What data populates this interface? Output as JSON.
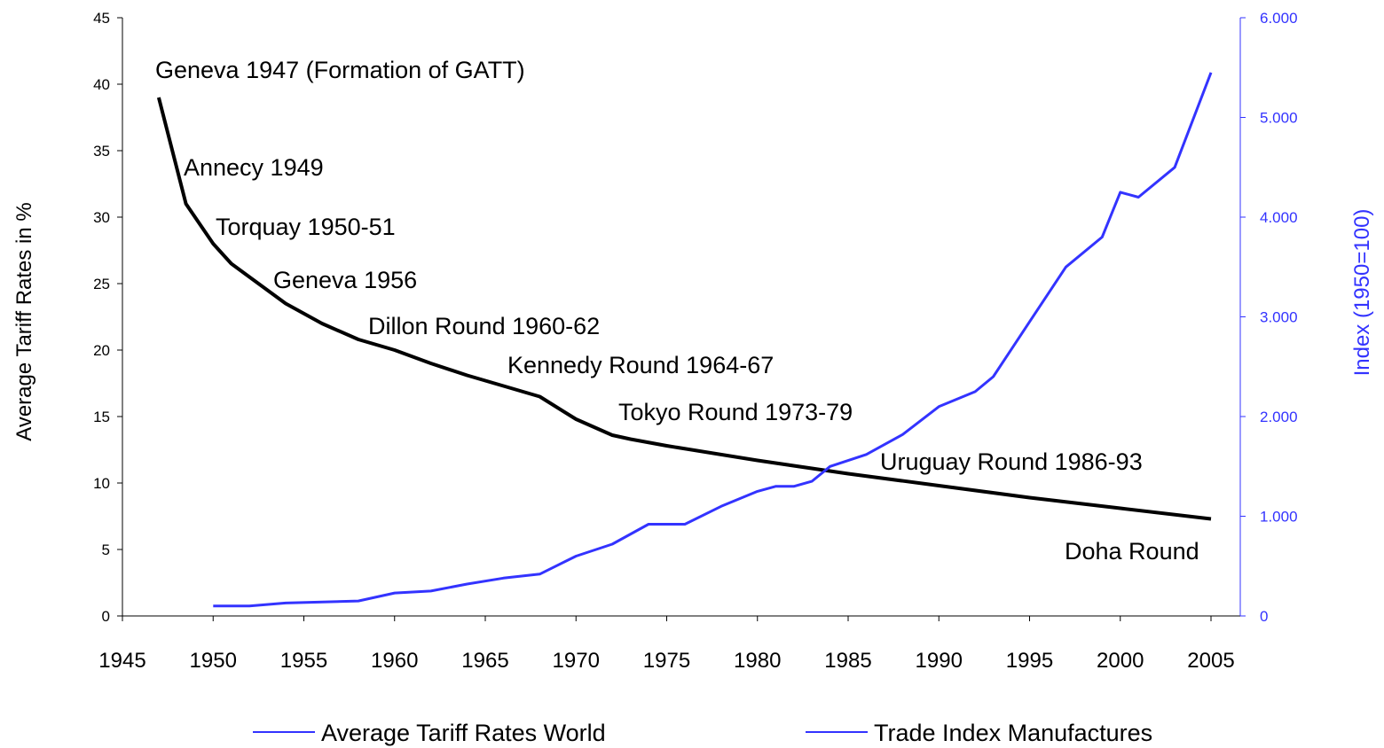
{
  "chart_data": {
    "type": "line",
    "y_label": "Average Tariff Rates in %",
    "y2_label": "Index (1950=100)",
    "xlim": [
      1945,
      2005
    ],
    "xticks": [
      1945,
      1950,
      1955,
      1960,
      1965,
      1970,
      1975,
      1980,
      1985,
      1990,
      1995,
      2000,
      2005
    ],
    "ylim": [
      0,
      45
    ],
    "yticks": [
      0,
      5,
      10,
      15,
      20,
      25,
      30,
      35,
      40,
      45
    ],
    "y2lim": [
      0,
      6000
    ],
    "y2ticks": [
      0,
      {
        "value": 1000,
        "label": "1.000"
      },
      {
        "value": 2000,
        "label": "2.000"
      },
      {
        "value": 3000,
        "label": "3.000"
      },
      {
        "value": 4000,
        "label": "4.000"
      },
      {
        "value": 5000,
        "label": "5.000"
      },
      {
        "value": 6000,
        "label": "6.000"
      }
    ],
    "annotations": [
      "Geneva 1947 (Formation of GATT)",
      "Annecy 1949",
      "Torquay 1950-51",
      "Geneva 1956",
      "Dillon Round 1960-62",
      "Kennedy Round 1964-67",
      "Tokyo Round 1973-79",
      "Uruguay Round 1986-93",
      "Doha Round"
    ],
    "series": [
      {
        "name": "Average Tariff Rates World",
        "color": "#000000",
        "legend_color": "#3333ff",
        "x": [
          1947,
          1948.5,
          1950,
          1951,
          1952,
          1954,
          1956,
          1958,
          1960,
          1962,
          1964,
          1966,
          1968,
          1970,
          1972,
          1973,
          1975,
          1980,
          1985,
          1990,
          1995,
          2000,
          2005
        ],
        "values": [
          39,
          31,
          28,
          26.5,
          25.5,
          23.5,
          22,
          20.8,
          20,
          19,
          18.1,
          17.3,
          16.5,
          14.8,
          13.6,
          13.3,
          12.8,
          11.7,
          10.7,
          9.8,
          8.9,
          8.1,
          7.3
        ]
      },
      {
        "name": "Trade Index Manufactures",
        "color": "#3333ff",
        "legend_color": "#3333ff",
        "axis": "y2",
        "x": [
          1950,
          1952,
          1954,
          1958,
          1960,
          1962,
          1964,
          1966,
          1968,
          1970,
          1972,
          1974,
          1976,
          1978,
          1980,
          1981,
          1982,
          1983,
          1984,
          1986,
          1988,
          1990,
          1992,
          1993,
          1995,
          1997,
          1999,
          2000,
          2001,
          2003,
          2005
        ],
        "values": [
          100,
          100,
          130,
          150,
          230,
          250,
          320,
          380,
          420,
          600,
          720,
          920,
          920,
          1100,
          1250,
          1300,
          1300,
          1350,
          1500,
          1620,
          1820,
          2100,
          2250,
          2400,
          2950,
          3500,
          3800,
          4250,
          4200,
          4500,
          5450
        ]
      }
    ]
  }
}
